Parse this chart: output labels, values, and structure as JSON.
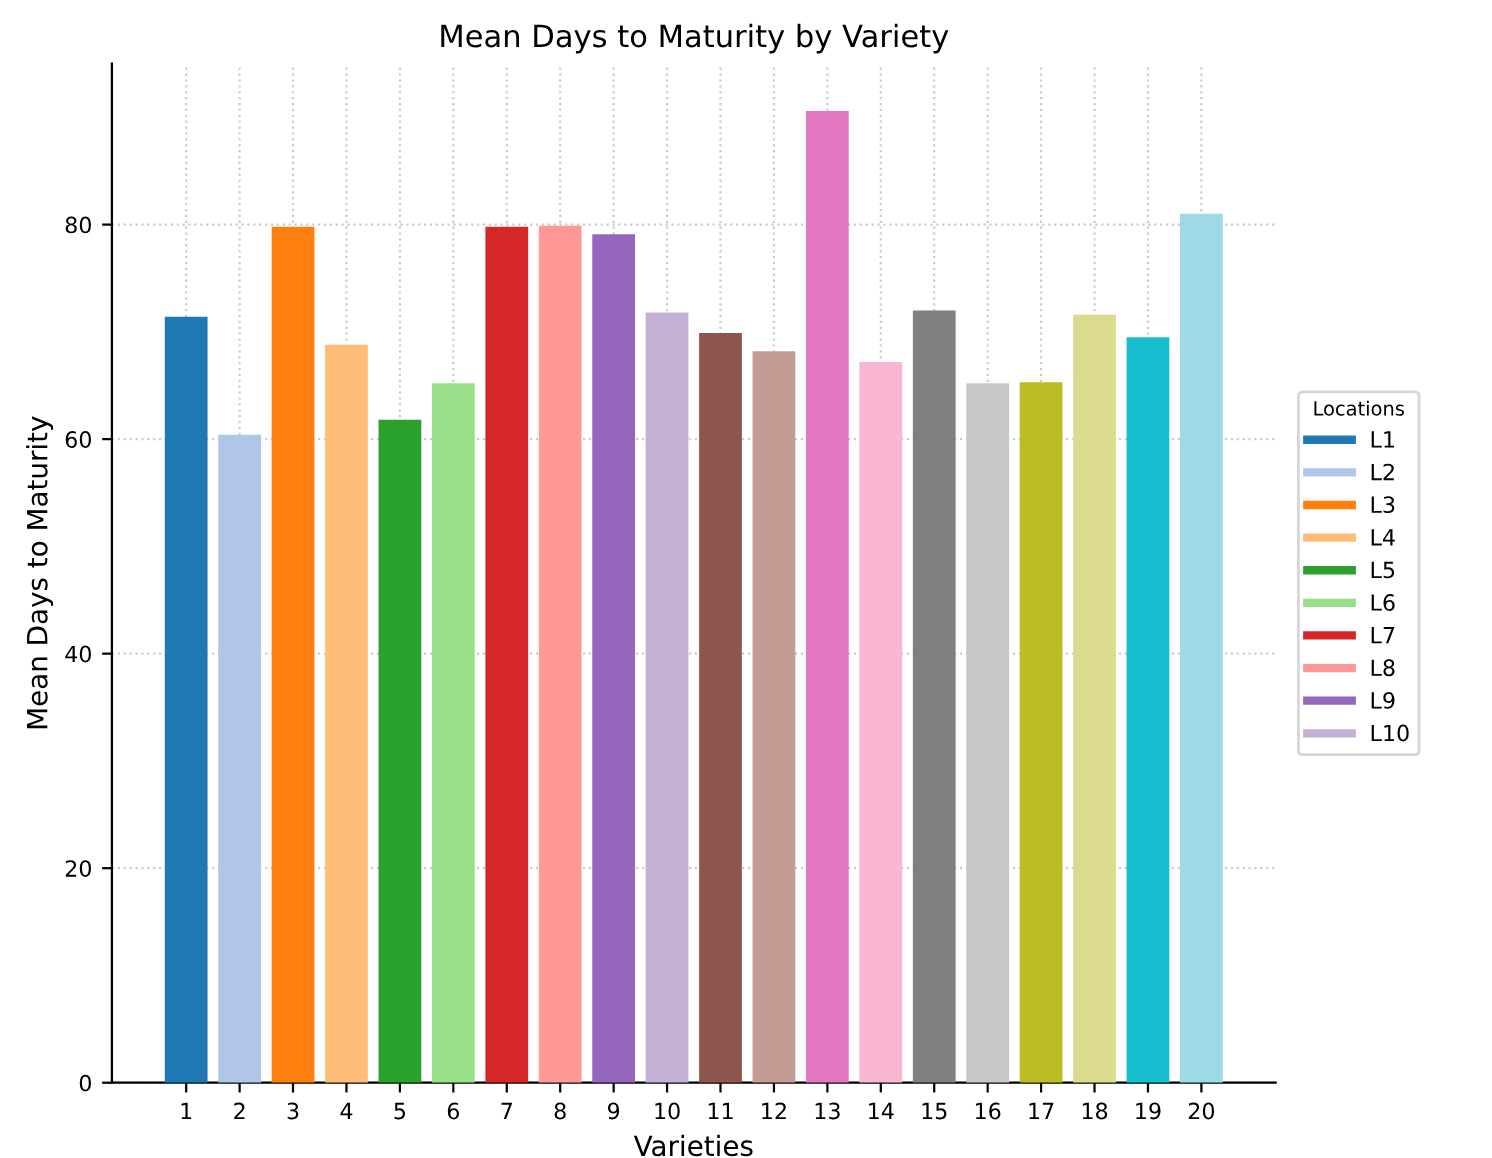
{
  "chart_data": {
    "type": "bar",
    "title": "Mean Days to Maturity by Variety",
    "xlabel": "Varieties",
    "ylabel": "Mean Days to Maturity",
    "legend_title": "Locations",
    "categories": [
      "1",
      "2",
      "3",
      "4",
      "5",
      "6",
      "7",
      "8",
      "9",
      "10",
      "11",
      "12",
      "13",
      "14",
      "15",
      "16",
      "17",
      "18",
      "19",
      "20"
    ],
    "series": [
      {
        "name": "L1",
        "color": "#1f77b4",
        "values": [
          71.4,
          null,
          null,
          null,
          null,
          null,
          null,
          null,
          null,
          null,
          null,
          null,
          null,
          null,
          null,
          null,
          null,
          null,
          null,
          null
        ]
      },
      {
        "name": "L2",
        "color": "#aec7e8",
        "values": [
          null,
          60.4,
          null,
          null,
          null,
          null,
          null,
          null,
          null,
          null,
          null,
          null,
          null,
          null,
          null,
          null,
          null,
          null,
          null,
          null
        ]
      },
      {
        "name": "L3",
        "color": "#ff7f0e",
        "values": [
          null,
          null,
          79.8,
          null,
          null,
          null,
          null,
          null,
          null,
          null,
          null,
          null,
          null,
          null,
          null,
          null,
          null,
          null,
          null,
          null
        ]
      },
      {
        "name": "L4",
        "color": "#ffbb78",
        "values": [
          null,
          null,
          null,
          68.8,
          null,
          null,
          null,
          null,
          null,
          null,
          null,
          null,
          null,
          null,
          null,
          null,
          null,
          null,
          null,
          null
        ]
      },
      {
        "name": "L5",
        "color": "#2ca02c",
        "values": [
          null,
          null,
          null,
          null,
          61.8,
          null,
          null,
          null,
          null,
          null,
          null,
          null,
          null,
          null,
          null,
          null,
          null,
          null,
          null,
          null
        ]
      },
      {
        "name": "L6",
        "color": "#98df8a",
        "values": [
          null,
          null,
          null,
          null,
          null,
          65.2,
          null,
          null,
          null,
          null,
          null,
          null,
          null,
          null,
          null,
          null,
          null,
          null,
          null,
          null
        ]
      },
      {
        "name": "L7",
        "color": "#d62728",
        "values": [
          null,
          null,
          null,
          null,
          null,
          null,
          79.8,
          null,
          null,
          null,
          null,
          null,
          null,
          null,
          null,
          null,
          null,
          null,
          null,
          null
        ]
      },
      {
        "name": "L8",
        "color": "#ff9896",
        "values": [
          null,
          null,
          null,
          null,
          null,
          null,
          null,
          79.9,
          null,
          null,
          null,
          null,
          null,
          null,
          null,
          null,
          null,
          null,
          null,
          null
        ]
      },
      {
        "name": "L9",
        "color": "#9467bd",
        "values": [
          null,
          null,
          null,
          null,
          null,
          null,
          null,
          null,
          79.1,
          null,
          null,
          null,
          null,
          null,
          null,
          null,
          null,
          null,
          null,
          null
        ]
      },
      {
        "name": "L10",
        "color": "#c5b0d5",
        "values": [
          null,
          null,
          null,
          null,
          null,
          null,
          null,
          null,
          null,
          71.8,
          null,
          null,
          null,
          null,
          null,
          null,
          null,
          null,
          null,
          null
        ]
      },
      {
        "color": "#8c564b",
        "values": [
          null,
          null,
          null,
          null,
          null,
          null,
          null,
          null,
          null,
          null,
          69.9,
          null,
          null,
          null,
          null,
          null,
          null,
          null,
          null,
          null
        ]
      },
      {
        "color": "#c49c94",
        "values": [
          null,
          null,
          null,
          null,
          null,
          null,
          null,
          null,
          null,
          null,
          null,
          68.2,
          null,
          null,
          null,
          null,
          null,
          null,
          null,
          null
        ]
      },
      {
        "color": "#e377c2",
        "values": [
          null,
          null,
          null,
          null,
          null,
          null,
          null,
          null,
          null,
          null,
          null,
          null,
          90.6,
          null,
          null,
          null,
          null,
          null,
          null,
          null
        ]
      },
      {
        "color": "#f7b6d2",
        "values": [
          null,
          null,
          null,
          null,
          null,
          null,
          null,
          null,
          null,
          null,
          null,
          null,
          null,
          67.2,
          null,
          null,
          null,
          null,
          null,
          null
        ]
      },
      {
        "color": "#7f7f7f",
        "values": [
          null,
          null,
          null,
          null,
          null,
          null,
          null,
          null,
          null,
          null,
          null,
          null,
          null,
          null,
          72.0,
          null,
          null,
          null,
          null,
          null
        ]
      },
      {
        "color": "#c7c7c7",
        "values": [
          null,
          null,
          null,
          null,
          null,
          null,
          null,
          null,
          null,
          null,
          null,
          null,
          null,
          null,
          null,
          65.2,
          null,
          null,
          null,
          null
        ]
      },
      {
        "color": "#bcbd22",
        "values": [
          null,
          null,
          null,
          null,
          null,
          null,
          null,
          null,
          null,
          null,
          null,
          null,
          null,
          null,
          null,
          null,
          65.3,
          null,
          null,
          null
        ]
      },
      {
        "color": "#dbdb8d",
        "values": [
          null,
          null,
          null,
          null,
          null,
          null,
          null,
          null,
          null,
          null,
          null,
          null,
          null,
          null,
          null,
          null,
          null,
          71.6,
          null,
          null
        ]
      },
      {
        "color": "#17becf",
        "values": [
          null,
          null,
          null,
          null,
          null,
          null,
          null,
          null,
          null,
          null,
          null,
          null,
          null,
          null,
          null,
          null,
          null,
          null,
          69.5,
          null
        ]
      },
      {
        "color": "#9edae5",
        "values": [
          null,
          null,
          null,
          null,
          null,
          null,
          null,
          null,
          null,
          null,
          null,
          null,
          null,
          null,
          null,
          null,
          null,
          null,
          null,
          81.0
        ]
      }
    ],
    "ylim": [
      0,
      95
    ],
    "yticks": [
      0,
      20,
      40,
      60,
      80
    ],
    "grid": true,
    "legend": "right"
  }
}
